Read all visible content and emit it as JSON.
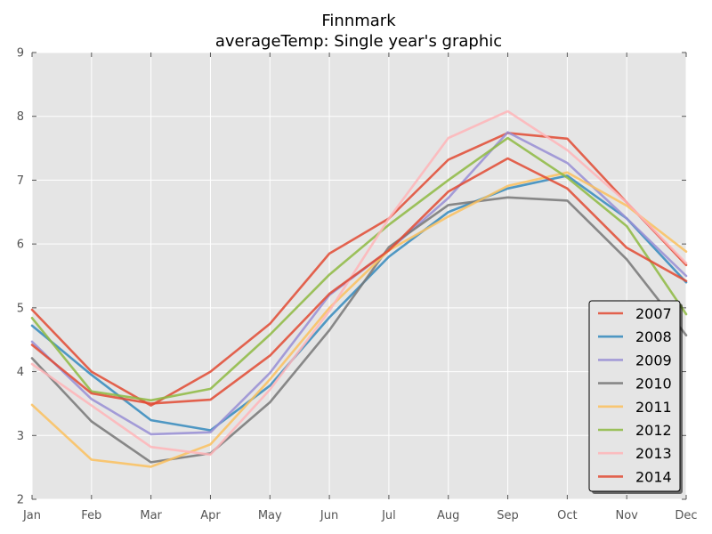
{
  "chart_data": {
    "type": "line",
    "title": "Finnmark",
    "subtitle": "averageTemp: Single year's graphic",
    "xlabel": "",
    "ylabel": "",
    "categories": [
      "Jan",
      "Feb",
      "Mar",
      "Apr",
      "May",
      "Jun",
      "Jul",
      "Aug",
      "Sep",
      "Oct",
      "Nov",
      "Dec"
    ],
    "yticks": [
      "2",
      "3",
      "4",
      "5",
      "6",
      "7",
      "8",
      "9"
    ],
    "ylim": [
      2,
      9
    ],
    "grid": true,
    "legend_position": "lower-right",
    "series": [
      {
        "name": "2007",
        "color": "#E24A33",
        "values": [
          4.97,
          4.0,
          3.47,
          4.0,
          4.75,
          5.85,
          6.4,
          7.32,
          7.74,
          7.65,
          6.65,
          5.67
        ]
      },
      {
        "name": "2008",
        "color": "#348ABD",
        "values": [
          4.72,
          3.95,
          3.24,
          3.08,
          3.78,
          4.85,
          5.8,
          6.5,
          6.87,
          7.07,
          6.4,
          5.4
        ]
      },
      {
        "name": "2009",
        "color": "#988ED5",
        "values": [
          4.47,
          3.57,
          3.02,
          3.05,
          3.98,
          5.2,
          5.9,
          6.72,
          7.75,
          7.27,
          6.4,
          5.5
        ]
      },
      {
        "name": "2010",
        "color": "#777777",
        "values": [
          4.21,
          3.22,
          2.58,
          2.72,
          3.52,
          4.65,
          5.95,
          6.61,
          6.73,
          6.68,
          5.76,
          4.57
        ]
      },
      {
        "name": "2011",
        "color": "#FBC15E",
        "values": [
          3.48,
          2.62,
          2.51,
          2.86,
          3.88,
          5.0,
          5.9,
          6.43,
          6.91,
          7.12,
          6.6,
          5.88
        ]
      },
      {
        "name": "2012",
        "color": "#8EBA42",
        "values": [
          4.84,
          3.69,
          3.55,
          3.73,
          4.58,
          5.52,
          6.3,
          7.0,
          7.66,
          7.04,
          6.28,
          4.9
        ]
      },
      {
        "name": "2013",
        "color": "#FFB5B8",
        "values": [
          4.12,
          3.47,
          2.82,
          2.7,
          3.72,
          4.95,
          6.4,
          7.66,
          8.08,
          7.47,
          6.65,
          5.7
        ]
      },
      {
        "name": "2014",
        "color": "#E24A33",
        "values": [
          4.42,
          3.66,
          3.5,
          3.56,
          4.25,
          5.22,
          5.9,
          6.82,
          7.34,
          6.87,
          5.94,
          5.42
        ]
      }
    ]
  }
}
